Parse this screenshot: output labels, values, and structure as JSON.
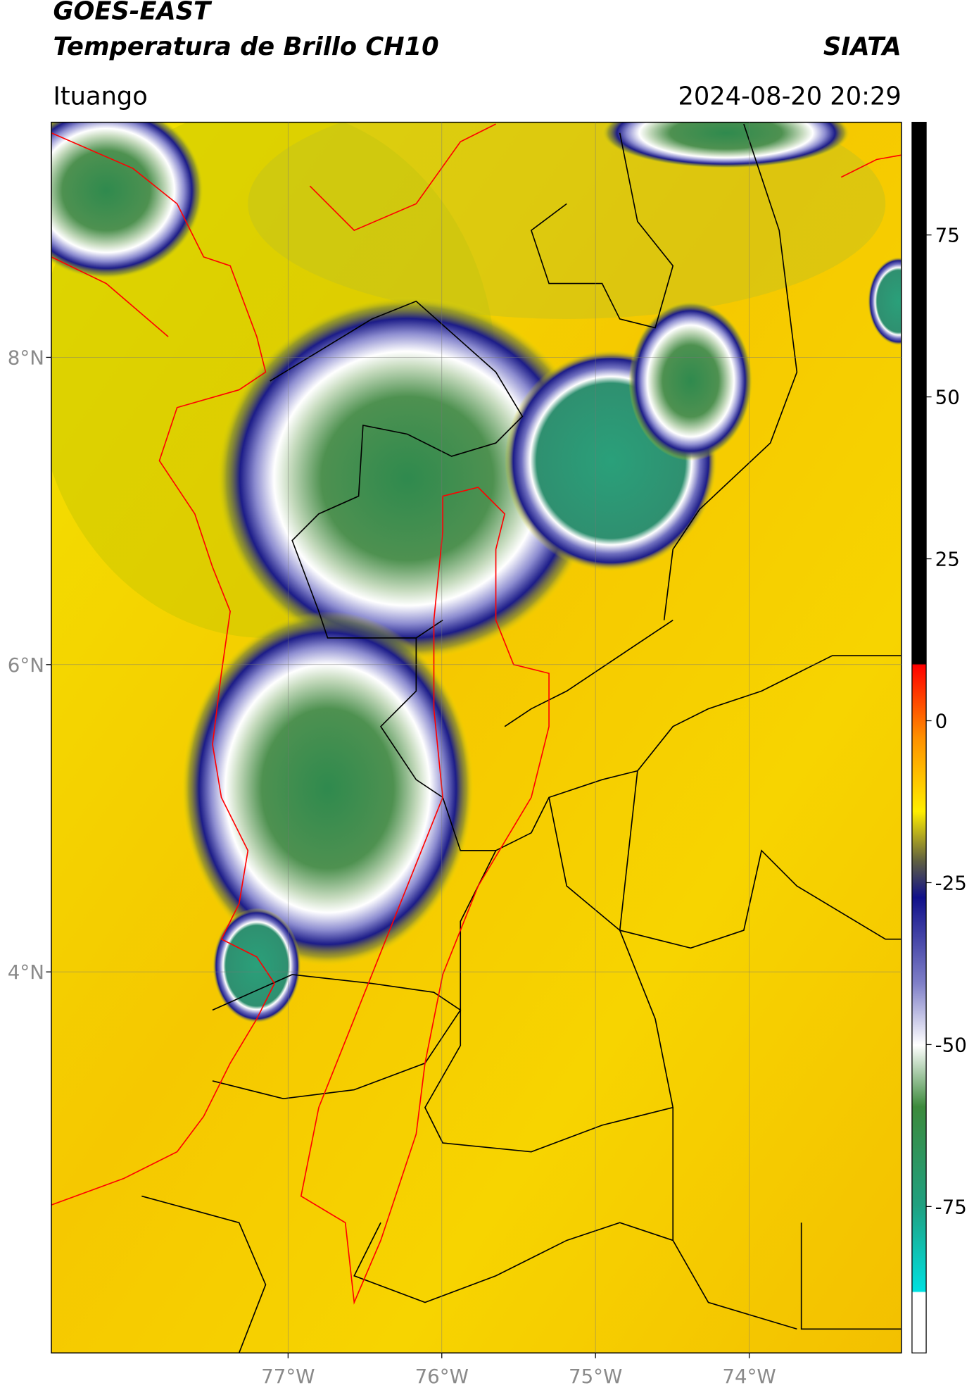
{
  "header": {
    "title": "GOES-EAST",
    "subtitle": "Temperatura de Brillo CH10",
    "source": "SIATA",
    "location": "Ituango",
    "datetime": "2024-08-20 20:29"
  },
  "map": {
    "xlim": [
      -78.54,
      -73.01
    ],
    "ylim": [
      1.52,
      9.53
    ],
    "xticks": [
      {
        "value": -77,
        "label": "77°W"
      },
      {
        "value": -76,
        "label": "76°W"
      },
      {
        "value": -75,
        "label": "75°W"
      },
      {
        "value": -74,
        "label": "74°W"
      }
    ],
    "yticks": [
      {
        "value": 8,
        "label": "8°N"
      },
      {
        "value": 6,
        "label": "6°N"
      },
      {
        "value": 4,
        "label": "4°N"
      }
    ],
    "grid": true
  },
  "colorbar": {
    "lim": [
      -97.6,
      92.4
    ],
    "ticks": [
      75,
      50,
      25,
      0,
      -25,
      -50,
      -75
    ]
  }
}
